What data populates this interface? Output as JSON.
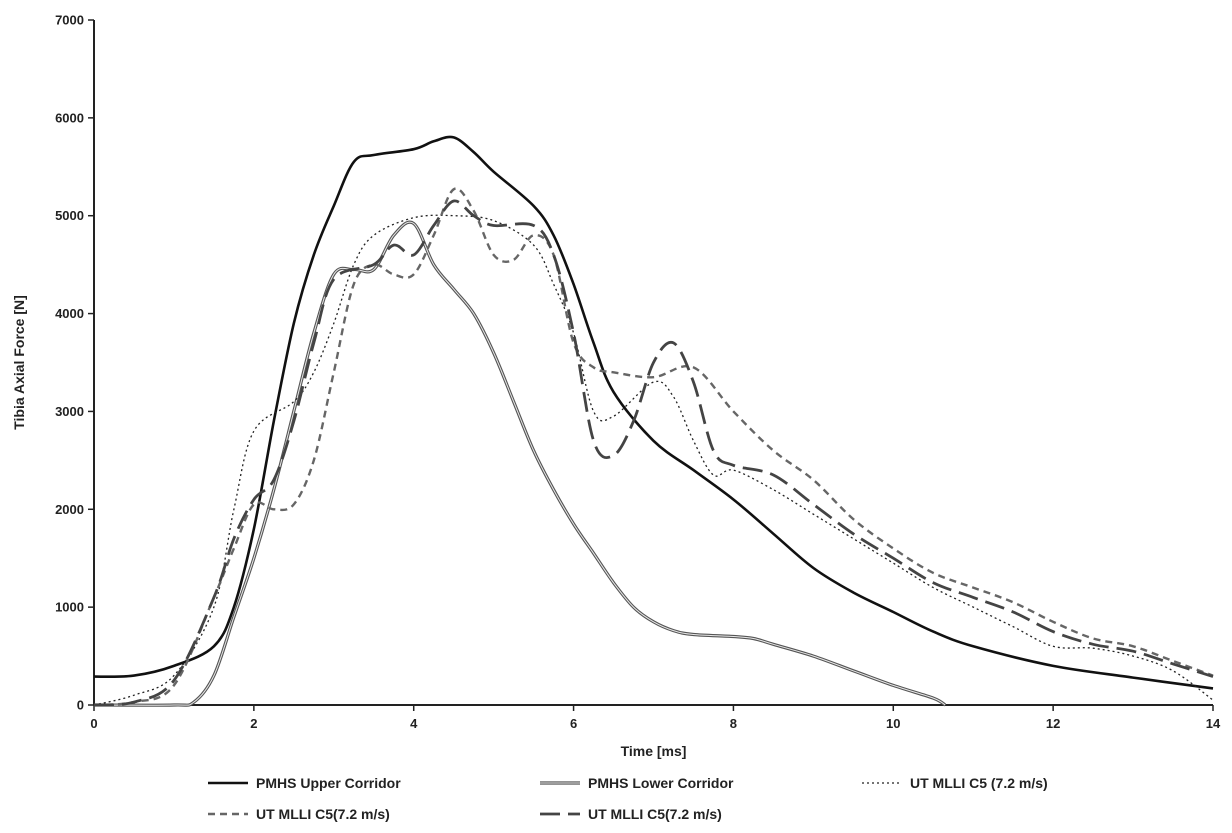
{
  "chart_data": {
    "type": "line",
    "title": "",
    "xlabel": "Time [ms]",
    "ylabel": "Tibia Axial Force [N]",
    "xlim": [
      0,
      14
    ],
    "ylim": [
      0,
      7000
    ],
    "x_ticks": [
      0,
      2,
      4,
      6,
      8,
      10,
      12,
      14
    ],
    "y_ticks": [
      0,
      1000,
      2000,
      3000,
      4000,
      5000,
      6000,
      7000
    ],
    "grid": false,
    "legend_position": "bottom",
    "series": [
      {
        "name": "PMHS Upper Corridor",
        "style": "solid-black",
        "points": [
          [
            0,
            290
          ],
          [
            0.5,
            300
          ],
          [
            1,
            400
          ],
          [
            1.5,
            600
          ],
          [
            1.75,
            1000
          ],
          [
            2,
            1800
          ],
          [
            2.25,
            2900
          ],
          [
            2.5,
            3900
          ],
          [
            2.75,
            4600
          ],
          [
            3,
            5100
          ],
          [
            3.25,
            5550
          ],
          [
            3.5,
            5620
          ],
          [
            4,
            5680
          ],
          [
            4.25,
            5760
          ],
          [
            4.5,
            5800
          ],
          [
            4.75,
            5650
          ],
          [
            5,
            5450
          ],
          [
            5.5,
            5100
          ],
          [
            5.75,
            4800
          ],
          [
            6,
            4300
          ],
          [
            6.25,
            3700
          ],
          [
            6.5,
            3200
          ],
          [
            7,
            2700
          ],
          [
            7.5,
            2400
          ],
          [
            8,
            2100
          ],
          [
            8.5,
            1750
          ],
          [
            9,
            1400
          ],
          [
            9.5,
            1150
          ],
          [
            10,
            950
          ],
          [
            10.5,
            750
          ],
          [
            11,
            600
          ],
          [
            12,
            400
          ],
          [
            13,
            280
          ],
          [
            14,
            170
          ]
        ]
      },
      {
        "name": "PMHS Lower Corridor",
        "style": "solid-gray",
        "points": [
          [
            0,
            0
          ],
          [
            1,
            0
          ],
          [
            1.25,
            30
          ],
          [
            1.5,
            300
          ],
          [
            1.75,
            900
          ],
          [
            2,
            1500
          ],
          [
            2.25,
            2200
          ],
          [
            2.5,
            3000
          ],
          [
            2.75,
            3800
          ],
          [
            3,
            4400
          ],
          [
            3.25,
            4450
          ],
          [
            3.5,
            4450
          ],
          [
            3.75,
            4800
          ],
          [
            4,
            4920
          ],
          [
            4.25,
            4500
          ],
          [
            4.5,
            4250
          ],
          [
            4.75,
            4000
          ],
          [
            5,
            3600
          ],
          [
            5.25,
            3100
          ],
          [
            5.5,
            2600
          ],
          [
            5.75,
            2200
          ],
          [
            6,
            1850
          ],
          [
            6.25,
            1550
          ],
          [
            6.5,
            1250
          ],
          [
            6.75,
            1000
          ],
          [
            7,
            850
          ],
          [
            7.25,
            760
          ],
          [
            7.5,
            720
          ],
          [
            8,
            700
          ],
          [
            8.25,
            680
          ],
          [
            8.5,
            620
          ],
          [
            9,
            500
          ],
          [
            9.5,
            350
          ],
          [
            10,
            200
          ],
          [
            10.5,
            70
          ],
          [
            10.65,
            0
          ]
        ]
      },
      {
        "name": "UT MLLI C5 (7.2 m/s)",
        "style": "dotted",
        "points": [
          [
            0,
            0
          ],
          [
            0.5,
            100
          ],
          [
            1,
            300
          ],
          [
            1.5,
            1000
          ],
          [
            1.75,
            2000
          ],
          [
            2,
            2800
          ],
          [
            2.5,
            3100
          ],
          [
            2.75,
            3400
          ],
          [
            3,
            3900
          ],
          [
            3.25,
            4500
          ],
          [
            3.5,
            4800
          ],
          [
            4,
            4980
          ],
          [
            4.5,
            5000
          ],
          [
            5,
            4950
          ],
          [
            5.5,
            4700
          ],
          [
            5.75,
            4300
          ],
          [
            6,
            3800
          ],
          [
            6.25,
            3000
          ],
          [
            6.5,
            2950
          ],
          [
            7,
            3300
          ],
          [
            7.25,
            3150
          ],
          [
            7.5,
            2700
          ],
          [
            7.75,
            2350
          ],
          [
            8,
            2400
          ],
          [
            8.5,
            2200
          ],
          [
            9,
            1950
          ],
          [
            9.5,
            1700
          ],
          [
            10,
            1450
          ],
          [
            10.5,
            1200
          ],
          [
            11,
            1000
          ],
          [
            11.5,
            800
          ],
          [
            12,
            600
          ],
          [
            12.5,
            580
          ],
          [
            13,
            500
          ],
          [
            13.5,
            350
          ],
          [
            14,
            50
          ]
        ]
      },
      {
        "name": "UT MLLI C5(7.2 m/s)",
        "style": "short-dash",
        "points": [
          [
            0,
            0
          ],
          [
            0.5,
            30
          ],
          [
            1,
            200
          ],
          [
            1.5,
            1100
          ],
          [
            1.75,
            1600
          ],
          [
            2,
            2050
          ],
          [
            2.25,
            2000
          ],
          [
            2.5,
            2050
          ],
          [
            2.75,
            2500
          ],
          [
            3,
            3400
          ],
          [
            3.25,
            4300
          ],
          [
            3.5,
            4500
          ],
          [
            3.75,
            4400
          ],
          [
            4,
            4400
          ],
          [
            4.25,
            4800
          ],
          [
            4.5,
            5270
          ],
          [
            4.75,
            5050
          ],
          [
            5,
            4600
          ],
          [
            5.25,
            4550
          ],
          [
            5.5,
            4800
          ],
          [
            5.75,
            4600
          ],
          [
            6,
            3700
          ],
          [
            6.25,
            3450
          ],
          [
            6.5,
            3400
          ],
          [
            7,
            3350
          ],
          [
            7.5,
            3450
          ],
          [
            8,
            3000
          ],
          [
            8.5,
            2600
          ],
          [
            9,
            2300
          ],
          [
            9.5,
            1900
          ],
          [
            10,
            1600
          ],
          [
            10.5,
            1350
          ],
          [
            11,
            1200
          ],
          [
            11.5,
            1050
          ],
          [
            12,
            850
          ],
          [
            12.5,
            680
          ],
          [
            13,
            600
          ],
          [
            13.5,
            450
          ],
          [
            14,
            300
          ]
        ]
      },
      {
        "name": "UT MLLI C5(7.2 m/s)",
        "style": "long-dash",
        "points": [
          [
            0,
            0
          ],
          [
            0.5,
            30
          ],
          [
            1,
            250
          ],
          [
            1.5,
            1100
          ],
          [
            1.75,
            1700
          ],
          [
            2,
            2100
          ],
          [
            2.25,
            2300
          ],
          [
            2.5,
            2900
          ],
          [
            2.75,
            3700
          ],
          [
            3,
            4350
          ],
          [
            3.5,
            4500
          ],
          [
            3.75,
            4700
          ],
          [
            4,
            4600
          ],
          [
            4.25,
            4900
          ],
          [
            4.5,
            5150
          ],
          [
            4.75,
            5000
          ],
          [
            5,
            4900
          ],
          [
            5.5,
            4900
          ],
          [
            5.75,
            4600
          ],
          [
            6,
            3800
          ],
          [
            6.25,
            2700
          ],
          [
            6.5,
            2550
          ],
          [
            6.75,
            2900
          ],
          [
            7,
            3500
          ],
          [
            7.25,
            3700
          ],
          [
            7.5,
            3300
          ],
          [
            7.75,
            2600
          ],
          [
            8,
            2450
          ],
          [
            8.5,
            2350
          ],
          [
            9,
            2050
          ],
          [
            9.5,
            1750
          ],
          [
            10,
            1500
          ],
          [
            10.5,
            1250
          ],
          [
            11,
            1100
          ],
          [
            11.5,
            950
          ],
          [
            12,
            750
          ],
          [
            12.5,
            620
          ],
          [
            13,
            550
          ],
          [
            13.5,
            420
          ],
          [
            14,
            290
          ]
        ]
      }
    ]
  }
}
